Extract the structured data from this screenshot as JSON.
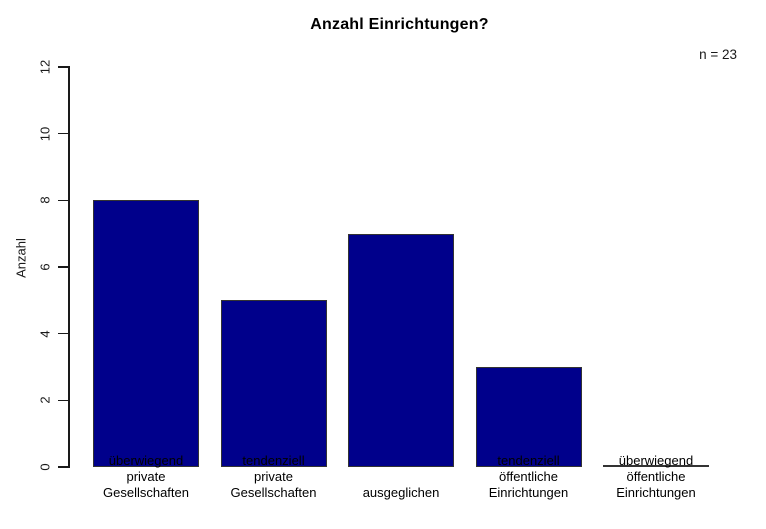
{
  "chart_data": {
    "type": "bar",
    "title": "Anzahl Einrichtungen?",
    "annotation": "n = 23",
    "ylabel": "Anzahl",
    "xlabel": "",
    "categories": [
      [
        "überwiegend",
        "private",
        "Gesellschaften"
      ],
      [
        "tendenziell",
        "private",
        "Gesellschaften"
      ],
      [
        "ausgeglichen"
      ],
      [
        "tendenziell",
        "öffentliche",
        "Einrichtungen"
      ],
      [
        "überwiegend",
        "öffentliche",
        "Einrichtungen"
      ]
    ],
    "values": [
      8,
      5,
      7,
      3,
      0
    ],
    "ylim": [
      0,
      12
    ],
    "yticks": [
      0,
      2,
      4,
      6,
      8,
      10,
      12
    ],
    "grid": false,
    "legend_position": "none",
    "bar_color": "#00008B",
    "bar_border_color": "#333333",
    "axis_color": "#1a1a1a",
    "text_color": "#000000",
    "background_color": "#ffffff"
  }
}
